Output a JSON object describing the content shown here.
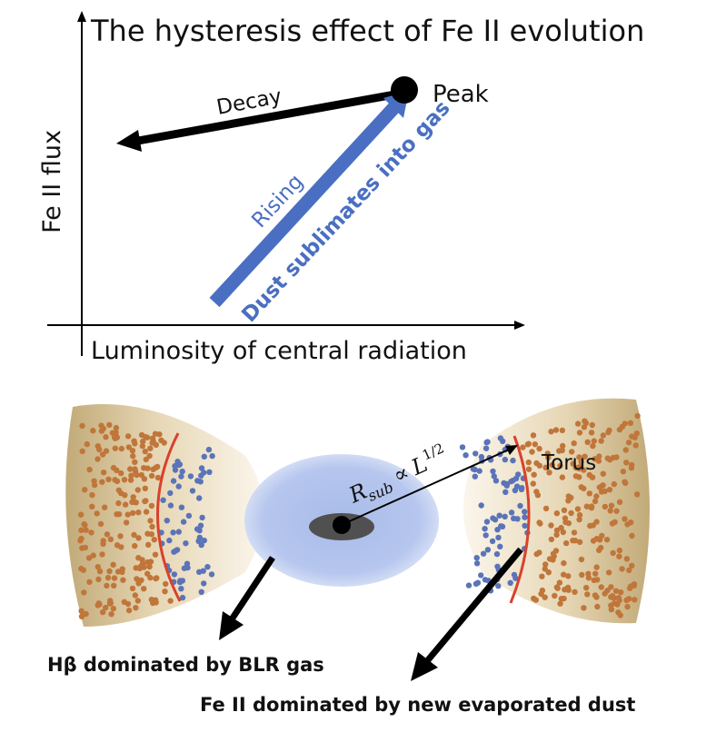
{
  "top_panel": {
    "title": "The hysteresis effect of Fe II evolution",
    "y_axis_label": "Fe II flux",
    "x_axis_label": "Luminosity of central radiation",
    "decay_label": "Decay",
    "peak_label": "Peak",
    "rising_label": "Rising",
    "sublimation_label": "Dust sublimates into gas"
  },
  "bottom_panel": {
    "torus_label": "Torus",
    "radius_symbol": "R",
    "radius_subscript": "sub",
    "proportional_symbol": "∝",
    "luminosity_symbol": "L",
    "exponent": "1/2",
    "hbeta_label": "Hβ dominated by BLR gas",
    "feii_label": "Fe II dominated by new evaporated dust"
  },
  "colors": {
    "blue_arrow": "#4a6fc2",
    "black_arrow": "#000000",
    "dust_dot": "#c0763a",
    "gas_dot": "#5b74b8",
    "sublimation_line": "#d9412b",
    "blr_ellipse": "#b3c4ea",
    "torus_fill": "#dcc8a0"
  }
}
